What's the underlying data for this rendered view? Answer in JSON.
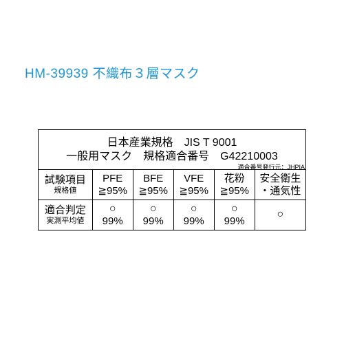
{
  "title": {
    "text": "HM-39939 不織布３層マスク",
    "color": "#2196d4",
    "fontsize": 19
  },
  "table": {
    "border_color": "#000000",
    "text_color": "#000000",
    "header": {
      "line1": "日本産業規格　JIS T 9001",
      "line2": "一般用マスク　規格適合番号　G42210003"
    },
    "footnote": "適合番号発行元：JHPIA",
    "row_labels": {
      "test": {
        "main": "試験項目",
        "sub": "規格値"
      },
      "result": {
        "main": "適合判定",
        "sub": "実測平均値"
      }
    },
    "columns": [
      {
        "name": "PFE",
        "spec": "≧95%",
        "judge": "○",
        "measured": "99%"
      },
      {
        "name": "BFE",
        "spec": "≧95%",
        "judge": "○",
        "measured": "99%"
      },
      {
        "name": "VFE",
        "spec": "≧95%",
        "judge": "○",
        "measured": "99%"
      },
      {
        "name": "花粉",
        "spec": "≧95%",
        "judge": "○",
        "measured": "99%"
      }
    ],
    "safety": {
      "line1": "安全衛生",
      "line2": "・通気性",
      "judge": "○"
    }
  },
  "colors": {
    "title": "#2196d4",
    "table_text": "#000000",
    "border": "#000000",
    "background": "#ffffff"
  }
}
